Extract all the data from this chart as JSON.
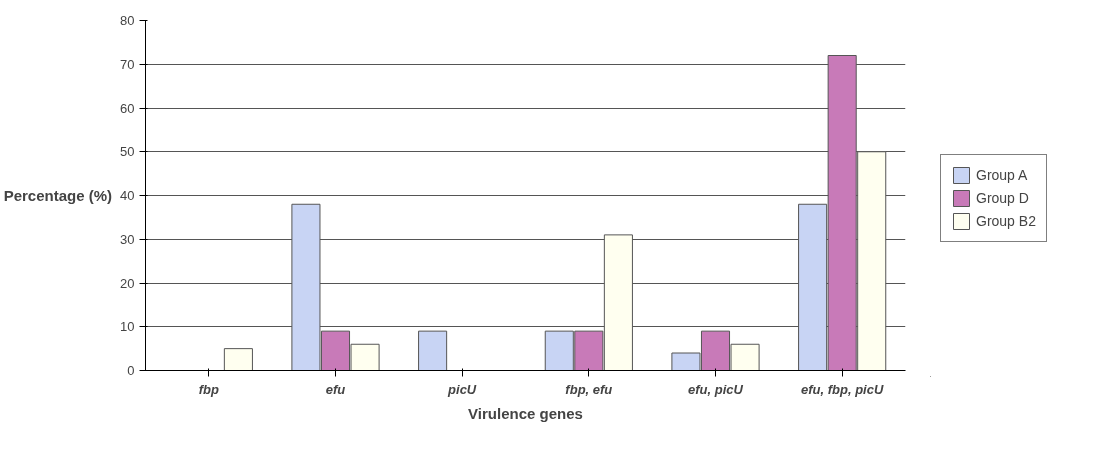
{
  "chart_data": {
    "type": "bar",
    "xlabel": "Virulence genes",
    "ylabel": "Percentage (%)",
    "categories": [
      "fbp",
      "efu",
      "picU",
      "fbp, efu",
      "efu, picU",
      "efu, fbp, picU"
    ],
    "series": [
      {
        "name": "Group A",
        "color": "#c8d4f4",
        "values": [
          0,
          38,
          9,
          9,
          4,
          38
        ]
      },
      {
        "name": "Group D",
        "color": "#c87ab8",
        "values": [
          0,
          9,
          0,
          9,
          9,
          72
        ]
      },
      {
        "name": "Group B2",
        "color": "#fffff0",
        "values": [
          5,
          6,
          0,
          31,
          6,
          50
        ]
      }
    ],
    "ylim": [
      0,
      80
    ],
    "yticks": [
      0,
      10,
      20,
      30,
      40,
      50,
      60,
      70,
      80
    ],
    "grid": "y",
    "legend": "right"
  }
}
